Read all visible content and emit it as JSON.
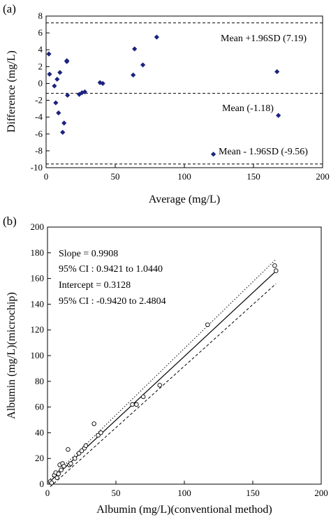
{
  "panel_a": {
    "label": "(a)",
    "xlabel": "Average (mg/L)",
    "ylabel": "Difference (mg/L)",
    "xticks": [
      "0",
      "50",
      "100",
      "150",
      "200"
    ],
    "yticks": [
      "8",
      "6",
      "4",
      "2",
      "0",
      "-2",
      "-4",
      "-6",
      "-8",
      "-10"
    ],
    "ann_upper": "Mean +1.96SD (7.19)",
    "ann_mean": "Mean (-1.18)",
    "ann_lower": "Mean - 1.96SD (-9.56)"
  },
  "panel_b": {
    "label": "(b)",
    "xlabel": "Albumin (mg/L)(conventional method)",
    "ylabel": "Albumin (mg/L)(microchip)",
    "xticks": [
      "0",
      "50",
      "100",
      "150",
      "200"
    ],
    "yticks": [
      "200",
      "180",
      "160",
      "140",
      "120",
      "100",
      "80",
      "60",
      "40",
      "20",
      "0"
    ],
    "slope": "Slope = 0.9908",
    "slope_ci": "95% CI : 0.9421 to 1.0440",
    "intercept": "Intercept = 0.3128",
    "intercept_ci": "95% CI : -0.9420 to 2.4804"
  },
  "chart_data": [
    {
      "type": "scatter",
      "xlim": [
        0,
        200
      ],
      "ylim": [
        -10,
        8
      ],
      "grid": false,
      "reference_lines": [
        {
          "label": "Mean +1.96SD (7.19)",
          "y": 7.19,
          "style": "dashed"
        },
        {
          "label": "Mean (-1.18)",
          "y": -1.18,
          "style": "dashed"
        },
        {
          "label": "Mean - 1.96SD (-9.56)",
          "y": -9.56,
          "style": "dashed"
        }
      ],
      "marker": "diamond",
      "marker_color": "#1a237e",
      "points": [
        [
          2,
          3.5
        ],
        [
          2.5,
          1.1
        ],
        [
          6,
          -0.3
        ],
        [
          7,
          -2.3
        ],
        [
          8,
          0.5
        ],
        [
          9,
          -3.5
        ],
        [
          10,
          1.3
        ],
        [
          12,
          -5.8
        ],
        [
          13,
          -4.7
        ],
        [
          15,
          2.7
        ],
        [
          15,
          2.6
        ],
        [
          15.5,
          -1.4
        ],
        [
          24,
          -1.3
        ],
        [
          26,
          -1.1
        ],
        [
          28,
          -1.0
        ],
        [
          39,
          0.1
        ],
        [
          41,
          0.0
        ],
        [
          63,
          1.0
        ],
        [
          64,
          4.1
        ],
        [
          70,
          2.2
        ],
        [
          80,
          5.5
        ],
        [
          121,
          -8.4
        ],
        [
          167,
          1.4
        ],
        [
          168,
          -3.8
        ]
      ]
    },
    {
      "type": "scatter",
      "xlim": [
        0,
        200
      ],
      "ylim": [
        0,
        200
      ],
      "grid": false,
      "marker": "open circle",
      "points": [
        [
          2,
          2
        ],
        [
          3,
          1
        ],
        [
          5,
          7
        ],
        [
          6,
          9
        ],
        [
          7,
          5
        ],
        [
          8,
          8
        ],
        [
          9,
          15
        ],
        [
          10,
          11
        ],
        [
          11,
          16
        ],
        [
          12,
          14
        ],
        [
          15,
          27
        ],
        [
          16,
          15
        ],
        [
          17,
          16
        ],
        [
          20,
          20
        ],
        [
          23,
          24
        ],
        [
          25,
          26
        ],
        [
          27,
          28
        ],
        [
          28,
          30
        ],
        [
          34,
          47
        ],
        [
          37,
          38
        ],
        [
          39,
          40
        ],
        [
          62,
          62
        ],
        [
          65,
          62
        ],
        [
          70,
          68
        ],
        [
          82,
          77
        ],
        [
          117,
          124
        ],
        [
          166,
          170
        ],
        [
          167,
          166
        ]
      ],
      "regression": {
        "slope": 0.9908,
        "intercept": 0.3128,
        "x_range": [
          2,
          167
        ],
        "style": "solid"
      },
      "confidence_bands": [
        {
          "x": [
            2,
            167
          ],
          "y": [
            -2,
            156
          ],
          "style": "dashed"
        },
        {
          "x": [
            2,
            167
          ],
          "y": [
            4,
            175
          ],
          "style": "dotted"
        }
      ]
    }
  ]
}
